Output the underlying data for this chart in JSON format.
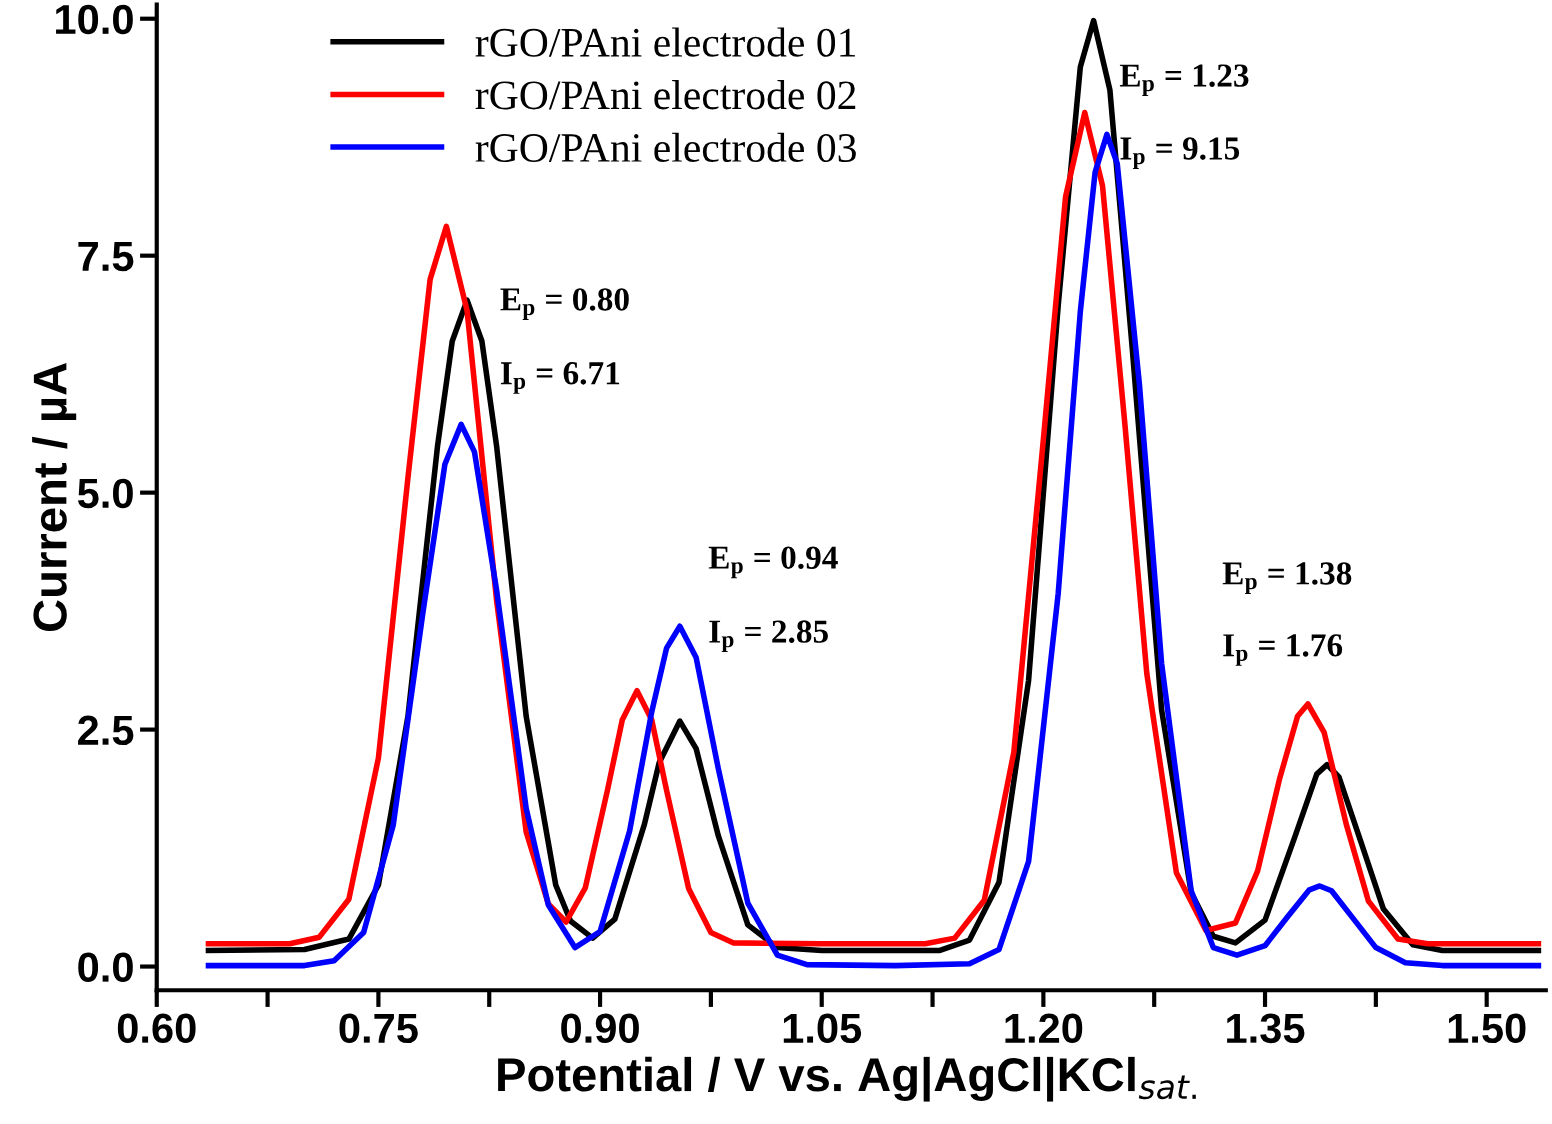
{
  "chart_data": {
    "type": "line",
    "xlabel": "Potential / V vs. Ag|AgCl|KCl$_{sat.}$",
    "ylabel": "Current / µA",
    "xlim": [
      0.6,
      1.54
    ],
    "ylim": [
      -0.25,
      10.15
    ],
    "xticks": [
      {
        "value": 0.6,
        "label": "0.60"
      },
      {
        "value": 0.675,
        "label": null
      },
      {
        "value": 0.75,
        "label": "0.75"
      },
      {
        "value": 0.825,
        "label": null
      },
      {
        "value": 0.9,
        "label": "0.90"
      },
      {
        "value": 0.975,
        "label": null
      },
      {
        "value": 1.05,
        "label": "1.05"
      },
      {
        "value": 1.125,
        "label": null
      },
      {
        "value": 1.2,
        "label": "1.20"
      },
      {
        "value": 1.275,
        "label": null
      },
      {
        "value": 1.35,
        "label": "1.35"
      },
      {
        "value": 1.425,
        "label": null
      },
      {
        "value": 1.5,
        "label": "1.50"
      }
    ],
    "yticks": [
      {
        "value": 0,
        "label": "0.0"
      },
      {
        "value": 2.5,
        "label": "2.5"
      },
      {
        "value": 5,
        "label": "5.0"
      },
      {
        "value": 7.5,
        "label": "7.5"
      },
      {
        "value": 10,
        "label": "10.0"
      }
    ],
    "grid": false,
    "legend": "top left",
    "marker": "none",
    "line_style": "solid",
    "series": [
      {
        "name": "rGO/PAni electrode 01",
        "color": "#000000",
        "x": [
          0.635,
          0.7,
          0.73,
          0.75,
          0.77,
          0.79,
          0.8,
          0.81,
          0.82,
          0.83,
          0.85,
          0.87,
          0.88,
          0.895,
          0.91,
          0.93,
          0.94,
          0.954,
          0.965,
          0.98,
          1.0,
          1.02,
          1.05,
          1.13,
          1.15,
          1.17,
          1.19,
          1.21,
          1.225,
          1.234,
          1.245,
          1.26,
          1.28,
          1.3,
          1.315,
          1.33,
          1.35,
          1.37,
          1.385,
          1.392,
          1.4,
          1.415,
          1.43,
          1.45,
          1.47,
          1.535
        ],
        "values": [
          0.17,
          0.18,
          0.29,
          0.86,
          2.64,
          5.49,
          6.6,
          7.03,
          6.6,
          5.49,
          2.64,
          0.86,
          0.48,
          0.3,
          0.5,
          1.5,
          2.15,
          2.59,
          2.3,
          1.38,
          0.44,
          0.2,
          0.17,
          0.17,
          0.28,
          0.89,
          3.02,
          6.97,
          9.49,
          9.98,
          9.25,
          6.55,
          2.71,
          0.78,
          0.32,
          0.25,
          0.49,
          1.36,
          2.03,
          2.13,
          2.0,
          1.31,
          0.61,
          0.23,
          0.17,
          0.17
        ]
      },
      {
        "name": "rGO/PAni electrode 02",
        "color": "#ff0000",
        "x": [
          0.635,
          0.69,
          0.71,
          0.73,
          0.75,
          0.77,
          0.785,
          0.796,
          0.81,
          0.83,
          0.85,
          0.865,
          0.877,
          0.89,
          0.905,
          0.915,
          0.925,
          0.935,
          0.945,
          0.96,
          0.975,
          0.99,
          1.05,
          1.12,
          1.14,
          1.16,
          1.18,
          1.2,
          1.215,
          1.228,
          1.24,
          1.255,
          1.27,
          1.29,
          1.31,
          1.33,
          1.345,
          1.36,
          1.372,
          1.379,
          1.39,
          1.405,
          1.42,
          1.44,
          1.46,
          1.535
        ],
        "values": [
          0.24,
          0.24,
          0.31,
          0.71,
          2.2,
          5.16,
          7.25,
          7.81,
          6.92,
          3.86,
          1.42,
          0.66,
          0.47,
          0.83,
          1.86,
          2.6,
          2.91,
          2.6,
          1.86,
          0.82,
          0.36,
          0.25,
          0.24,
          0.24,
          0.3,
          0.7,
          2.26,
          5.56,
          8.12,
          9.01,
          8.24,
          5.75,
          3.09,
          0.99,
          0.38,
          0.46,
          1.01,
          1.99,
          2.64,
          2.77,
          2.47,
          1.5,
          0.69,
          0.29,
          0.24,
          0.24
        ]
      },
      {
        "name": "rGO/PAni electrode 03",
        "color": "#0000ff",
        "x": [
          0.635,
          0.7,
          0.72,
          0.74,
          0.76,
          0.78,
          0.795,
          0.806,
          0.815,
          0.83,
          0.85,
          0.865,
          0.883,
          0.9,
          0.92,
          0.935,
          0.945,
          0.954,
          0.965,
          0.98,
          1.0,
          1.02,
          1.04,
          1.1,
          1.15,
          1.17,
          1.19,
          1.21,
          1.225,
          1.235,
          1.243,
          1.25,
          1.265,
          1.28,
          1.3,
          1.315,
          1.331,
          1.35,
          1.365,
          1.38,
          1.387,
          1.395,
          1.41,
          1.425,
          1.445,
          1.47,
          1.535
        ],
        "values": [
          0.01,
          0.01,
          0.06,
          0.36,
          1.49,
          3.72,
          5.3,
          5.72,
          5.43,
          3.97,
          1.67,
          0.65,
          0.2,
          0.37,
          1.43,
          2.69,
          3.36,
          3.59,
          3.26,
          2.09,
          0.67,
          0.12,
          0.02,
          0.01,
          0.03,
          0.18,
          1.11,
          3.93,
          6.91,
          8.38,
          8.78,
          8.47,
          6.14,
          3.2,
          0.8,
          0.2,
          0.12,
          0.22,
          0.52,
          0.81,
          0.85,
          0.8,
          0.5,
          0.2,
          0.04,
          0.01,
          0.01
        ]
      }
    ],
    "annotations": [
      "E$_{p}$ = 0.80",
      "I$_{p}$ = 6.71",
      "E$_{p}$ = 0.94",
      "I$_{p}$ = 2.85",
      "E$_{p}$ = 1.23",
      "I$_{p}$ = 9.15",
      "E$_{p}$ = 1.38",
      "I$_{p}$ = 1.76"
    ]
  }
}
